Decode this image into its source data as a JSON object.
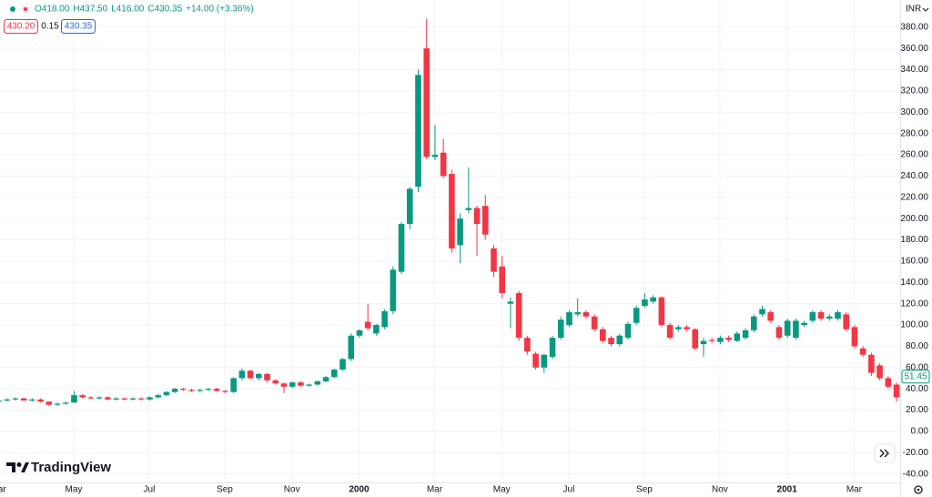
{
  "chart_data": {
    "type": "candlestick",
    "currency": "INR",
    "legend_bar": {
      "open": "O418.00",
      "high": "H437.50",
      "low": "L416.00",
      "close": "C430.35",
      "change": "+14.00 (+3.36%)"
    },
    "order_boxes": {
      "sell": "430.20",
      "spread": "0.15",
      "buy": "430.35"
    },
    "brand": "TradingView",
    "last_price": 51.45,
    "up_color": "#089981",
    "down_color": "#f23645",
    "grid": true,
    "categories": [
      "Mar",
      null,
      null,
      null,
      null,
      null,
      null,
      null,
      null,
      "May",
      null,
      null,
      null,
      null,
      null,
      null,
      null,
      null,
      "Jul",
      null,
      null,
      null,
      null,
      null,
      null,
      null,
      null,
      "Sep",
      null,
      null,
      null,
      null,
      null,
      null,
      null,
      "Nov",
      null,
      null,
      null,
      null,
      null,
      null,
      null,
      "2000",
      null,
      null,
      null,
      null,
      null,
      null,
      null,
      null,
      "Mar",
      null,
      null,
      null,
      null,
      null,
      null,
      null,
      "May",
      null,
      null,
      null,
      null,
      null,
      null,
      null,
      "Jul",
      null,
      null,
      null,
      null,
      null,
      null,
      null,
      null,
      "Sep",
      null,
      null,
      null,
      null,
      null,
      null,
      null,
      null,
      "Nov",
      null,
      null,
      null,
      null,
      null,
      null,
      null,
      "2001",
      null,
      null,
      null,
      null,
      null,
      null,
      null,
      "Mar",
      null,
      null,
      null,
      null,
      null
    ],
    "open": [
      28,
      29,
      30,
      31,
      29,
      30,
      28,
      25,
      26,
      27,
      34,
      32,
      31,
      32,
      30,
      31,
      30,
      31,
      30,
      32,
      34,
      37,
      40,
      39,
      38,
      39,
      40,
      38,
      37,
      50,
      57,
      50,
      54,
      48,
      45,
      42,
      46,
      43,
      44,
      47,
      51,
      58,
      68,
      90,
      103,
      92,
      98,
      113,
      150,
      195,
      230,
      360,
      258,
      262,
      242,
      175,
      208,
      210,
      212,
      172,
      155,
      120,
      130,
      88,
      73,
      60,
      70,
      88,
      100,
      110,
      112,
      108,
      96,
      88,
      82,
      88,
      102,
      118,
      122,
      126,
      100,
      96,
      98,
      96,
      82,
      86,
      84,
      88,
      85,
      88,
      95,
      110,
      112,
      98,
      90,
      88,
      100,
      104,
      112,
      106,
      106,
      110,
      98,
      78,
      72,
      62,
      50,
      44
    ],
    "high": [
      30,
      31,
      32,
      32,
      31,
      31,
      28,
      27,
      28,
      38,
      35,
      33,
      33,
      33,
      32,
      32,
      32,
      32,
      33,
      35,
      38,
      41,
      41,
      40,
      40,
      41,
      41,
      39,
      51,
      59,
      58,
      55,
      55,
      49,
      46,
      47,
      47,
      45,
      48,
      52,
      59,
      69,
      92,
      96,
      120,
      101,
      115,
      155,
      197,
      230,
      340,
      388,
      288,
      275,
      246,
      205,
      248,
      212,
      222,
      175,
      165,
      126,
      132,
      90,
      75,
      73,
      90,
      108,
      114,
      125,
      114,
      110,
      98,
      90,
      92,
      103,
      118,
      130,
      128,
      127,
      102,
      100,
      100,
      97,
      88,
      88,
      90,
      90,
      94,
      97,
      110,
      118,
      114,
      100,
      106,
      106,
      104,
      114,
      114,
      110,
      114,
      112,
      100,
      80,
      74,
      64,
      52,
      46
    ],
    "low": [
      27,
      28,
      29,
      29,
      28,
      27,
      24,
      24,
      25,
      27,
      31,
      30,
      30,
      29,
      29,
      29,
      29,
      29,
      29,
      31,
      33,
      36,
      38,
      37,
      37,
      38,
      37,
      36,
      36,
      48,
      49,
      48,
      46,
      44,
      36,
      41,
      42,
      42,
      43,
      46,
      50,
      57,
      66,
      88,
      95,
      90,
      96,
      110,
      148,
      190,
      225,
      256,
      255,
      238,
      168,
      158,
      205,
      165,
      180,
      145,
      125,
      97,
      85,
      72,
      58,
      55,
      68,
      86,
      98,
      108,
      106,
      94,
      83,
      80,
      80,
      86,
      100,
      116,
      120,
      98,
      86,
      94,
      94,
      76,
      70,
      83,
      82,
      84,
      84,
      86,
      93,
      108,
      102,
      86,
      88,
      86,
      98,
      102,
      104,
      104,
      104,
      94,
      78,
      70,
      52,
      48,
      40,
      28
    ],
    "close": [
      29,
      30,
      31,
      29,
      30,
      28,
      25,
      26,
      27,
      34,
      32,
      31,
      32,
      30,
      31,
      30,
      31,
      30,
      32,
      34,
      37,
      40,
      39,
      38,
      39,
      40,
      38,
      37,
      50,
      57,
      50,
      54,
      48,
      45,
      42,
      46,
      43,
      44,
      47,
      51,
      58,
      68,
      90,
      95,
      97,
      100,
      113,
      152,
      195,
      228,
      335,
      258,
      260,
      240,
      172,
      200,
      210,
      195,
      185,
      150,
      130,
      122,
      88,
      75,
      60,
      72,
      88,
      105,
      112,
      112,
      108,
      96,
      85,
      82,
      90,
      101,
      116,
      124,
      126,
      100,
      88,
      98,
      96,
      78,
      85,
      85,
      88,
      86,
      92,
      95,
      108,
      115,
      104,
      88,
      104,
      104,
      102,
      112,
      106,
      108,
      112,
      96,
      80,
      72,
      55,
      50,
      42,
      32
    ],
    "ylim": [
      -48,
      405.5
    ],
    "yticks": [
      {
        "value": -40,
        "label": "-40.00"
      },
      {
        "value": -20,
        "label": "-20.00"
      },
      {
        "value": 0,
        "label": "0.00"
      },
      {
        "value": 20,
        "label": "20.00"
      },
      {
        "value": 40,
        "label": "40.00"
      },
      {
        "value": 60,
        "label": "60.00"
      },
      {
        "value": 80,
        "label": "80.00"
      },
      {
        "value": 100,
        "label": "100.00"
      },
      {
        "value": 120,
        "label": "120.00"
      },
      {
        "value": 140,
        "label": "140.00"
      },
      {
        "value": 160,
        "label": "160.00"
      },
      {
        "value": 180,
        "label": "180.00"
      },
      {
        "value": 200,
        "label": "200.00"
      },
      {
        "value": 220,
        "label": "220.00"
      },
      {
        "value": 240,
        "label": "240.00"
      },
      {
        "value": 260,
        "label": "260.00"
      },
      {
        "value": 280,
        "label": "280.00"
      },
      {
        "value": 300,
        "label": "300.00"
      },
      {
        "value": 320,
        "label": "320.00"
      },
      {
        "value": 340,
        "label": "340.00"
      },
      {
        "value": 360,
        "label": "360.00"
      },
      {
        "value": 380,
        "label": "380.00"
      }
    ]
  }
}
